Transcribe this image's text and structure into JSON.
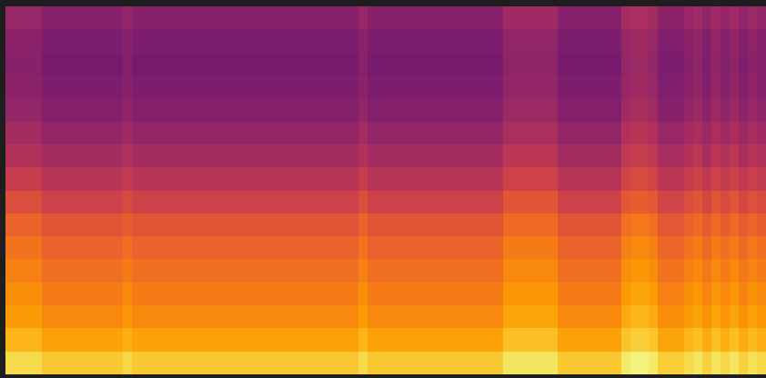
{
  "chart_data": {
    "type": "heatmap",
    "tick_labels": false,
    "zlim": [
      0,
      100
    ],
    "cells": [
      [
        41,
        41,
        41,
        41,
        37,
        37,
        37,
        37,
        37,
        37,
        37,
        37,
        37,
        40,
        37,
        37,
        37,
        37,
        37,
        37,
        37,
        37,
        37,
        37,
        37,
        37,
        37,
        37,
        37,
        37,
        37,
        37,
        37,
        37,
        37,
        37,
        37,
        37,
        37,
        41,
        37,
        37,
        37,
        37,
        37,
        37,
        37,
        37,
        37,
        37,
        37,
        37,
        37,
        37,
        37,
        43,
        43,
        43,
        43,
        43,
        43,
        37,
        37,
        37,
        37,
        37,
        37,
        37,
        44,
        46,
        46,
        44,
        38,
        38,
        38,
        41,
        43,
        39,
        43,
        40,
        43,
        39,
        42,
        40
      ],
      [
        38,
        38,
        38,
        38,
        34,
        34,
        34,
        34,
        34,
        34,
        34,
        34,
        34,
        37,
        34,
        34,
        34,
        34,
        34,
        34,
        34,
        34,
        34,
        34,
        34,
        34,
        34,
        34,
        34,
        34,
        34,
        34,
        34,
        34,
        34,
        34,
        34,
        34,
        34,
        38,
        34,
        34,
        34,
        34,
        34,
        34,
        34,
        34,
        34,
        34,
        34,
        34,
        34,
        34,
        34,
        40,
        40,
        40,
        40,
        40,
        40,
        34,
        34,
        34,
        34,
        34,
        34,
        34,
        41,
        43,
        43,
        41,
        35,
        35,
        35,
        38,
        40,
        36,
        40,
        37,
        40,
        36,
        39,
        37
      ],
      [
        37,
        37,
        37,
        37,
        33,
        33,
        33,
        33,
        33,
        33,
        33,
        33,
        33,
        36,
        33,
        33,
        33,
        33,
        33,
        33,
        33,
        33,
        33,
        33,
        33,
        33,
        33,
        33,
        33,
        33,
        33,
        33,
        33,
        33,
        33,
        33,
        33,
        33,
        33,
        37,
        33,
        33,
        33,
        33,
        33,
        33,
        33,
        33,
        33,
        33,
        33,
        33,
        33,
        33,
        33,
        39,
        39,
        39,
        39,
        39,
        39,
        33,
        33,
        33,
        33,
        33,
        33,
        33,
        40,
        42,
        42,
        40,
        34,
        34,
        34,
        37,
        39,
        35,
        39,
        36,
        39,
        35,
        38,
        36
      ],
      [
        38,
        38,
        38,
        38,
        34,
        34,
        34,
        34,
        34,
        34,
        34,
        34,
        34,
        37,
        34,
        34,
        34,
        34,
        34,
        34,
        34,
        34,
        34,
        34,
        34,
        34,
        34,
        34,
        34,
        34,
        34,
        34,
        34,
        34,
        34,
        34,
        34,
        34,
        34,
        38,
        34,
        34,
        34,
        34,
        34,
        34,
        34,
        34,
        34,
        34,
        34,
        34,
        34,
        34,
        34,
        40,
        40,
        40,
        40,
        40,
        40,
        34,
        34,
        34,
        34,
        34,
        34,
        34,
        41,
        43,
        43,
        41,
        35,
        35,
        35,
        38,
        40,
        36,
        40,
        37,
        40,
        36,
        39,
        37
      ],
      [
        40,
        40,
        40,
        40,
        36,
        36,
        36,
        36,
        36,
        36,
        36,
        36,
        36,
        39,
        36,
        36,
        36,
        36,
        36,
        36,
        36,
        36,
        36,
        36,
        36,
        36,
        36,
        36,
        36,
        36,
        36,
        36,
        36,
        36,
        36,
        36,
        36,
        36,
        36,
        40,
        36,
        36,
        36,
        36,
        36,
        36,
        36,
        36,
        36,
        36,
        36,
        36,
        36,
        36,
        36,
        42,
        42,
        42,
        42,
        42,
        42,
        36,
        36,
        36,
        36,
        36,
        36,
        36,
        43,
        45,
        45,
        43,
        37,
        37,
        37,
        40,
        42,
        38,
        42,
        39,
        42,
        38,
        41,
        39
      ],
      [
        44,
        44,
        44,
        44,
        40,
        40,
        40,
        40,
        40,
        40,
        40,
        40,
        40,
        43,
        40,
        40,
        40,
        40,
        40,
        40,
        40,
        40,
        40,
        40,
        40,
        40,
        40,
        40,
        40,
        40,
        40,
        40,
        40,
        40,
        40,
        40,
        40,
        40,
        40,
        44,
        40,
        40,
        40,
        40,
        40,
        40,
        40,
        40,
        40,
        40,
        40,
        40,
        40,
        40,
        40,
        46,
        46,
        46,
        46,
        46,
        46,
        40,
        40,
        40,
        40,
        40,
        40,
        40,
        47,
        49,
        49,
        47,
        41,
        41,
        41,
        44,
        46,
        42,
        46,
        43,
        46,
        42,
        45,
        43
      ],
      [
        48,
        48,
        48,
        48,
        44,
        44,
        44,
        44,
        44,
        44,
        44,
        44,
        44,
        47,
        44,
        44,
        44,
        44,
        44,
        44,
        44,
        44,
        44,
        44,
        44,
        44,
        44,
        44,
        44,
        44,
        44,
        44,
        44,
        44,
        44,
        44,
        44,
        44,
        44,
        48,
        44,
        44,
        44,
        44,
        44,
        44,
        44,
        44,
        44,
        44,
        44,
        44,
        44,
        44,
        44,
        50,
        50,
        50,
        50,
        50,
        50,
        44,
        44,
        44,
        44,
        44,
        44,
        44,
        51,
        53,
        53,
        51,
        45,
        45,
        45,
        48,
        50,
        46,
        50,
        47,
        50,
        46,
        49,
        47
      ],
      [
        53,
        53,
        53,
        53,
        49,
        49,
        49,
        49,
        49,
        49,
        49,
        49,
        49,
        52,
        49,
        49,
        49,
        49,
        49,
        49,
        49,
        49,
        49,
        49,
        49,
        49,
        49,
        49,
        49,
        49,
        49,
        49,
        49,
        49,
        49,
        49,
        49,
        49,
        49,
        53,
        49,
        49,
        49,
        49,
        49,
        49,
        49,
        49,
        49,
        49,
        49,
        49,
        49,
        49,
        49,
        55,
        55,
        55,
        55,
        55,
        55,
        49,
        49,
        49,
        49,
        49,
        49,
        49,
        56,
        58,
        58,
        56,
        50,
        50,
        50,
        53,
        55,
        51,
        55,
        52,
        55,
        51,
        54,
        52
      ],
      [
        59,
        59,
        59,
        59,
        55,
        55,
        55,
        55,
        55,
        55,
        55,
        55,
        55,
        58,
        55,
        55,
        55,
        55,
        55,
        55,
        55,
        55,
        55,
        55,
        55,
        55,
        55,
        55,
        55,
        55,
        55,
        55,
        55,
        55,
        55,
        55,
        55,
        55,
        55,
        59,
        55,
        55,
        55,
        55,
        55,
        55,
        55,
        55,
        55,
        55,
        55,
        55,
        55,
        55,
        55,
        61,
        61,
        61,
        61,
        61,
        61,
        55,
        55,
        55,
        55,
        55,
        55,
        55,
        62,
        64,
        64,
        62,
        56,
        56,
        56,
        59,
        61,
        57,
        61,
        58,
        61,
        57,
        60,
        58
      ],
      [
        65,
        65,
        65,
        65,
        61,
        61,
        61,
        61,
        61,
        61,
        61,
        61,
        61,
        64,
        61,
        61,
        61,
        61,
        61,
        61,
        61,
        61,
        61,
        61,
        61,
        61,
        61,
        61,
        61,
        61,
        61,
        61,
        61,
        61,
        61,
        61,
        61,
        61,
        61,
        65,
        61,
        61,
        61,
        61,
        61,
        61,
        61,
        61,
        61,
        61,
        61,
        61,
        61,
        61,
        61,
        67,
        67,
        67,
        67,
        67,
        67,
        61,
        61,
        61,
        61,
        61,
        61,
        61,
        68,
        70,
        70,
        68,
        62,
        62,
        62,
        65,
        67,
        63,
        67,
        64,
        67,
        63,
        66,
        64
      ],
      [
        69,
        69,
        69,
        69,
        65,
        65,
        65,
        65,
        65,
        65,
        65,
        65,
        65,
        68,
        65,
        65,
        65,
        65,
        65,
        65,
        65,
        65,
        65,
        65,
        65,
        65,
        65,
        65,
        65,
        65,
        65,
        65,
        65,
        65,
        65,
        65,
        65,
        65,
        65,
        69,
        65,
        65,
        65,
        65,
        65,
        65,
        65,
        65,
        65,
        65,
        65,
        65,
        65,
        65,
        65,
        71,
        71,
        71,
        71,
        71,
        71,
        65,
        65,
        65,
        65,
        65,
        65,
        65,
        72,
        74,
        74,
        72,
        66,
        66,
        66,
        69,
        71,
        67,
        71,
        68,
        71,
        67,
        70,
        68
      ],
      [
        72,
        72,
        72,
        72,
        68,
        68,
        68,
        68,
        68,
        68,
        68,
        68,
        68,
        71,
        68,
        68,
        68,
        68,
        68,
        68,
        68,
        68,
        68,
        68,
        68,
        68,
        68,
        68,
        68,
        68,
        68,
        68,
        68,
        68,
        68,
        68,
        68,
        68,
        68,
        72,
        68,
        68,
        68,
        68,
        68,
        68,
        68,
        68,
        68,
        68,
        68,
        68,
        68,
        68,
        68,
        74,
        74,
        74,
        74,
        74,
        74,
        68,
        68,
        68,
        68,
        68,
        68,
        68,
        75,
        77,
        77,
        75,
        69,
        69,
        69,
        72,
        74,
        70,
        74,
        71,
        74,
        70,
        73,
        71
      ],
      [
        75,
        75,
        75,
        75,
        71,
        71,
        71,
        71,
        71,
        71,
        71,
        71,
        71,
        74,
        71,
        71,
        71,
        71,
        71,
        71,
        71,
        71,
        71,
        71,
        71,
        71,
        71,
        71,
        71,
        71,
        71,
        71,
        71,
        71,
        71,
        71,
        71,
        71,
        71,
        75,
        71,
        71,
        71,
        71,
        71,
        71,
        71,
        71,
        71,
        71,
        71,
        71,
        71,
        71,
        71,
        77,
        77,
        77,
        77,
        77,
        77,
        71,
        71,
        71,
        71,
        71,
        71,
        71,
        78,
        80,
        80,
        78,
        72,
        72,
        72,
        75,
        77,
        73,
        77,
        74,
        77,
        73,
        76,
        74
      ],
      [
        78,
        78,
        78,
        78,
        74,
        74,
        74,
        74,
        74,
        74,
        74,
        74,
        74,
        77,
        74,
        74,
        74,
        74,
        74,
        74,
        74,
        74,
        74,
        74,
        74,
        74,
        74,
        74,
        74,
        74,
        74,
        74,
        74,
        74,
        74,
        74,
        74,
        74,
        74,
        78,
        74,
        74,
        74,
        74,
        74,
        74,
        74,
        74,
        74,
        74,
        74,
        74,
        74,
        74,
        74,
        80,
        80,
        80,
        80,
        80,
        80,
        74,
        74,
        74,
        74,
        74,
        74,
        74,
        81,
        83,
        83,
        81,
        75,
        75,
        75,
        78,
        80,
        76,
        80,
        77,
        80,
        76,
        79,
        77
      ],
      [
        83,
        83,
        83,
        83,
        79,
        79,
        79,
        79,
        79,
        79,
        79,
        79,
        79,
        82,
        79,
        79,
        79,
        79,
        79,
        79,
        79,
        79,
        79,
        79,
        79,
        79,
        79,
        79,
        79,
        79,
        79,
        79,
        79,
        79,
        79,
        79,
        79,
        79,
        79,
        83,
        79,
        79,
        79,
        79,
        79,
        79,
        79,
        79,
        79,
        79,
        79,
        79,
        79,
        79,
        79,
        85,
        85,
        85,
        85,
        85,
        85,
        79,
        79,
        79,
        79,
        79,
        79,
        79,
        86,
        88,
        88,
        86,
        80,
        80,
        80,
        83,
        85,
        81,
        85,
        82,
        85,
        81,
        84,
        82
      ],
      [
        91,
        91,
        91,
        91,
        87,
        87,
        87,
        87,
        87,
        87,
        87,
        87,
        87,
        90,
        87,
        87,
        87,
        87,
        87,
        87,
        87,
        87,
        87,
        87,
        87,
        87,
        87,
        87,
        87,
        87,
        87,
        87,
        87,
        87,
        87,
        87,
        87,
        87,
        87,
        91,
        87,
        87,
        87,
        87,
        87,
        87,
        87,
        87,
        87,
        87,
        87,
        87,
        87,
        87,
        87,
        93,
        93,
        93,
        93,
        93,
        93,
        87,
        87,
        87,
        87,
        87,
        87,
        87,
        94,
        96,
        96,
        94,
        88,
        88,
        88,
        91,
        93,
        89,
        93,
        90,
        93,
        89,
        92,
        90
      ]
    ]
  }
}
